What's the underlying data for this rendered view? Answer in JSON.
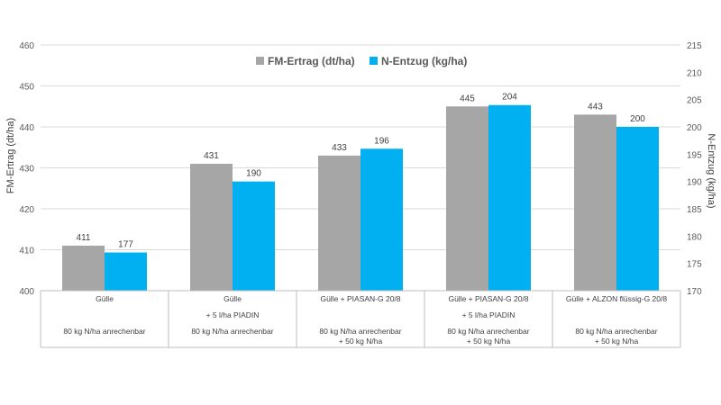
{
  "chart_data": {
    "type": "bar",
    "legend_position": "top-center",
    "grid": true,
    "categories": [
      {
        "line1": "Gülle",
        "line2": "",
        "line3": "80 kg N/ha anrechenbar",
        "line4": ""
      },
      {
        "line1": "Gülle",
        "line2": "+ 5 l/ha PIADIN",
        "line3": "80 kg N/ha anrechenbar",
        "line4": ""
      },
      {
        "line1": "Gülle + PIASAN-G 20/8",
        "line2": "",
        "line3": "80 kg N/ha anrechenbar",
        "line4": "+ 50 kg N/ha"
      },
      {
        "line1": "Gülle + PIASAN-G 20/8",
        "line2": "+ 5 l/ha PIADIN",
        "line3": "80 kg N/ha anrechenbar",
        "line4": "+ 50 kg N/ha"
      },
      {
        "line1": "Gülle + ALZON flüssig-G 20/8",
        "line2": "",
        "line3": "80 kg N/ha anrechenbar",
        "line4": "+ 50 kg N/ha"
      }
    ],
    "series": [
      {
        "name": "FM-Ertrag (dt/ha)",
        "axis": "left",
        "color": "#A6A6A6",
        "values": [
          411,
          431,
          433,
          445,
          443
        ]
      },
      {
        "name": "N-Entzug (kg/ha)",
        "axis": "right",
        "color": "#00B0F0",
        "values": [
          177,
          190,
          196,
          204,
          200
        ]
      }
    ],
    "y_left": {
      "label": "FM-Ertrag (dt/ha)",
      "min": 400,
      "max": 460,
      "ticks": [
        400,
        410,
        420,
        430,
        440,
        450,
        460
      ]
    },
    "y_right": {
      "label": "N-Entzug (kg/ha)",
      "min": 170,
      "max": 215,
      "ticks": [
        170,
        175,
        180,
        185,
        190,
        195,
        200,
        205,
        210,
        215
      ]
    }
  }
}
